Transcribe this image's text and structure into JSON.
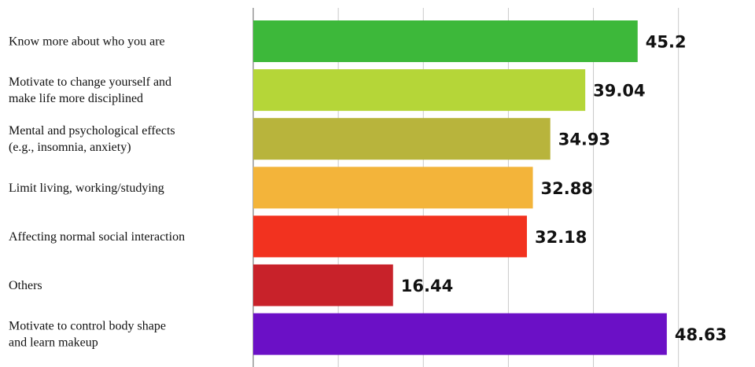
{
  "chart_data": {
    "type": "bar",
    "orientation": "horizontal",
    "categories": [
      "Know more about who you are",
      "Motivate to change yourself and make life more disciplined",
      "Mental and psychological effects (e.g., insomnia, anxiety)",
      "Limit living, working/studying",
      "Affecting normal social interaction",
      "Others",
      "Motivate to control body shape and learn makeup"
    ],
    "category_lines": [
      [
        "Know more about who you are"
      ],
      [
        "Motivate to change yourself and",
        "make life more disciplined"
      ],
      [
        "Mental and psychological effects",
        "(e.g., insomnia, anxiety)"
      ],
      [
        "Limit living, working/studying"
      ],
      [
        "Affecting normal social interaction"
      ],
      [
        "Others"
      ],
      [
        "Motivate to control body shape",
        "and learn makeup"
      ]
    ],
    "values": [
      45.2,
      39.04,
      34.93,
      32.88,
      32.18,
      16.44,
      48.63
    ],
    "value_labels": [
      "45.2",
      "39.04",
      "34.93",
      "32.88",
      "32.18",
      "16.44",
      "48.63"
    ],
    "colors": [
      "#3db83a",
      "#b5d638",
      "#b8b43c",
      "#f3b43a",
      "#f2321f",
      "#c8222a",
      "#6b10c6"
    ],
    "xlim": [
      0,
      59
    ],
    "gridlines_at": [
      0,
      10,
      20,
      30,
      40,
      50
    ],
    "grid": true,
    "legend": "none",
    "title": "",
    "xlabel": "",
    "ylabel": ""
  }
}
